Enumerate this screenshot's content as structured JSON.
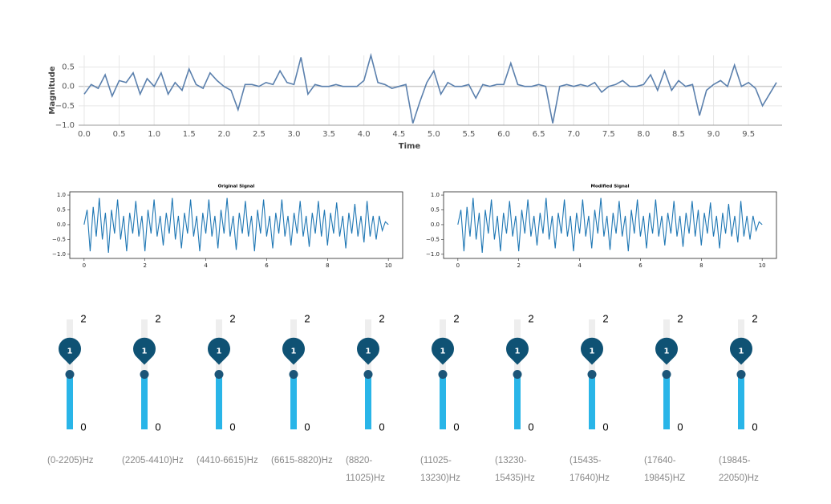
{
  "chart_data": [
    {
      "type": "line",
      "xlabel": "Time",
      "ylabel": "Magnitude",
      "grid": true,
      "x": [
        0,
        0.1,
        0.2,
        0.3,
        0.4,
        0.5,
        0.6,
        0.7,
        0.8,
        0.9,
        1,
        1.1,
        1.2,
        1.3,
        1.4,
        1.5,
        1.6,
        1.7,
        1.8,
        1.9,
        2,
        2.1,
        2.2,
        2.3,
        2.4,
        2.5,
        2.6,
        2.7,
        2.8,
        2.9,
        3,
        3.1,
        3.2,
        3.3,
        3.4,
        3.5,
        3.6,
        3.7,
        3.8,
        3.9,
        4,
        4.1,
        4.2,
        4.3,
        4.4,
        4.5,
        4.6,
        4.7,
        4.8,
        4.9,
        5,
        5.1,
        5.2,
        5.3,
        5.4,
        5.5,
        5.6,
        5.7,
        5.8,
        5.9,
        6,
        6.1,
        6.2,
        6.3,
        6.4,
        6.5,
        6.6,
        6.7,
        6.8,
        6.9,
        7,
        7.1,
        7.2,
        7.3,
        7.4,
        7.5,
        7.6,
        7.7,
        7.8,
        7.9,
        8,
        8.1,
        8.2,
        8.3,
        8.4,
        8.5,
        8.6,
        8.7,
        8.8,
        8.9,
        9,
        9.1,
        9.2,
        9.3,
        9.4,
        9.5,
        9.6,
        9.7,
        9.8,
        9.9
      ],
      "series": [
        {
          "color": "#5b80ad",
          "values": [
            -0.2,
            0.05,
            -0.05,
            0.3,
            -0.25,
            0.15,
            0.1,
            0.35,
            -0.2,
            0.2,
            0,
            0.35,
            -0.2,
            0.1,
            -0.1,
            0.45,
            0.05,
            -0.05,
            0.35,
            0.15,
            0,
            -0.1,
            -0.6,
            0.05,
            0.05,
            0,
            0.1,
            0.05,
            0.4,
            0.1,
            0.05,
            0.75,
            -0.2,
            0.05,
            0,
            0,
            0.05,
            0,
            0,
            0,
            0.15,
            0.8,
            0.1,
            0.05,
            -0.05,
            0,
            0.05,
            -0.95,
            -0.4,
            0.1,
            0.4,
            -0.2,
            0.1,
            0,
            0,
            0.05,
            -0.3,
            0.05,
            0,
            0.05,
            0.05,
            0.6,
            0.05,
            0,
            0,
            0.05,
            0,
            -0.95,
            0,
            0.05,
            0,
            0.05,
            0,
            0.1,
            -0.15,
            0,
            0.05,
            0.15,
            0,
            0,
            0.05,
            0.3,
            -0.1,
            0.4,
            -0.1,
            0.15,
            0,
            0.05,
            -0.75,
            -0.1,
            0.05,
            0.15,
            0,
            0.55,
            0,
            0.1,
            -0.05,
            -0.5,
            -0.2,
            0.1
          ]
        }
      ],
      "xlim": [
        -0.08,
        9.98
      ],
      "ylim": [
        -1.0,
        0.8
      ],
      "xticks": [
        {
          "value": 0,
          "label": "0.0"
        },
        0.5,
        {
          "value": 1,
          "label": "1.0"
        },
        1.5,
        {
          "value": 2,
          "label": "2.0"
        },
        2.5,
        {
          "value": 3,
          "label": "3.0"
        },
        3.5,
        {
          "value": 4,
          "label": "4.0"
        },
        4.5,
        {
          "value": 5,
          "label": "5.0"
        },
        5.5,
        {
          "value": 6,
          "label": "6.0"
        },
        6.5,
        {
          "value": 7,
          "label": "7.0"
        },
        7.5,
        {
          "value": 8,
          "label": "8.0"
        },
        8.5,
        {
          "value": 9,
          "label": "9.0"
        },
        9.5
      ],
      "yticks": [
        {
          "value": -1,
          "label": "−1.0"
        },
        {
          "value": -0.5,
          "label": "−0.5"
        },
        {
          "value": 0,
          "label": "0.0"
        },
        0.5
      ]
    },
    {
      "type": "line",
      "title": "Original Signal",
      "x": [
        0,
        0.1,
        0.2,
        0.3,
        0.4,
        0.5,
        0.6,
        0.7,
        0.8,
        0.9,
        1,
        1.1,
        1.2,
        1.3,
        1.4,
        1.5,
        1.6,
        1.7,
        1.8,
        1.9,
        2,
        2.1,
        2.2,
        2.3,
        2.4,
        2.5,
        2.6,
        2.7,
        2.8,
        2.9,
        3,
        3.1,
        3.2,
        3.3,
        3.4,
        3.5,
        3.6,
        3.7,
        3.8,
        3.9,
        4,
        4.1,
        4.2,
        4.3,
        4.4,
        4.5,
        4.6,
        4.7,
        4.8,
        4.9,
        5,
        5.1,
        5.2,
        5.3,
        5.4,
        5.5,
        5.6,
        5.7,
        5.8,
        5.9,
        6,
        6.1,
        6.2,
        6.3,
        6.4,
        6.5,
        6.6,
        6.7,
        6.8,
        6.9,
        7,
        7.1,
        7.2,
        7.3,
        7.4,
        7.5,
        7.6,
        7.7,
        7.8,
        7.9,
        8,
        8.1,
        8.2,
        8.3,
        8.4,
        8.5,
        8.6,
        8.7,
        8.8,
        8.9,
        9,
        9.1,
        9.2,
        9.3,
        9.4,
        9.5,
        9.6,
        9.7,
        9.8,
        9.9,
        10
      ],
      "series": [
        {
          "color": "#1f77b4",
          "values": [
            0,
            0.5,
            -0.9,
            0.6,
            -0.4,
            0.9,
            -0.5,
            0.4,
            -0.95,
            0.5,
            -0.3,
            0.85,
            -0.5,
            0.3,
            -0.9,
            0.4,
            -0.3,
            0.8,
            -0.4,
            0.3,
            -0.9,
            0.5,
            -0.3,
            0.85,
            -0.4,
            0.3,
            -0.7,
            0.4,
            -0.3,
            0.9,
            -0.5,
            0.3,
            -0.8,
            0.4,
            -0.3,
            0.85,
            -0.4,
            0.3,
            -0.9,
            0.4,
            -0.3,
            0.85,
            -0.4,
            0.3,
            -0.8,
            0.5,
            -0.3,
            0.9,
            -0.4,
            0.3,
            -0.85,
            0.4,
            -0.3,
            0.8,
            -0.4,
            0.3,
            -0.9,
            0.5,
            -0.3,
            0.85,
            -0.4,
            0.3,
            -0.8,
            0.4,
            -0.3,
            0.85,
            -0.4,
            0.3,
            -0.7,
            0.4,
            -0.3,
            0.8,
            -0.4,
            0.3,
            -0.75,
            0.4,
            -0.3,
            0.8,
            -0.4,
            0.5,
            -0.7,
            0.4,
            -0.3,
            0.75,
            -0.4,
            0.3,
            -0.8,
            0.4,
            -0.3,
            0.7,
            -0.4,
            0.3,
            -0.6,
            0.8,
            -0.4,
            0.3,
            -0.5,
            0.3,
            -0.2,
            0.1,
            0
          ]
        }
      ],
      "xlim": [
        -0.47,
        10.47
      ],
      "ylim": [
        -1.14,
        1.11
      ],
      "xticks": [
        0,
        2,
        4,
        6,
        8,
        10
      ],
      "yticks": [
        {
          "value": -1,
          "label": "−1.0"
        },
        {
          "value": -0.5,
          "label": "−0.5"
        },
        {
          "value": 0,
          "label": "0.0"
        },
        0.5,
        {
          "value": 1,
          "label": "1.0"
        }
      ]
    },
    {
      "type": "line",
      "title": "Modified Signal",
      "x": [
        0,
        0.1,
        0.2,
        0.3,
        0.4,
        0.5,
        0.6,
        0.7,
        0.8,
        0.9,
        1,
        1.1,
        1.2,
        1.3,
        1.4,
        1.5,
        1.6,
        1.7,
        1.8,
        1.9,
        2,
        2.1,
        2.2,
        2.3,
        2.4,
        2.5,
        2.6,
        2.7,
        2.8,
        2.9,
        3,
        3.1,
        3.2,
        3.3,
        3.4,
        3.5,
        3.6,
        3.7,
        3.8,
        3.9,
        4,
        4.1,
        4.2,
        4.3,
        4.4,
        4.5,
        4.6,
        4.7,
        4.8,
        4.9,
        5,
        5.1,
        5.2,
        5.3,
        5.4,
        5.5,
        5.6,
        5.7,
        5.8,
        5.9,
        6,
        6.1,
        6.2,
        6.3,
        6.4,
        6.5,
        6.6,
        6.7,
        6.8,
        6.9,
        7,
        7.1,
        7.2,
        7.3,
        7.4,
        7.5,
        7.6,
        7.7,
        7.8,
        7.9,
        8,
        8.1,
        8.2,
        8.3,
        8.4,
        8.5,
        8.6,
        8.7,
        8.8,
        8.9,
        9,
        9.1,
        9.2,
        9.3,
        9.4,
        9.5,
        9.6,
        9.7,
        9.8,
        9.9,
        10
      ],
      "series": [
        {
          "color": "#1f77b4",
          "values": [
            0,
            0.5,
            -0.9,
            0.6,
            -0.4,
            0.9,
            -0.5,
            0.4,
            -0.95,
            0.5,
            -0.3,
            0.85,
            -0.5,
            0.3,
            -0.9,
            0.4,
            -0.3,
            0.8,
            -0.4,
            0.3,
            -0.9,
            0.5,
            -0.3,
            0.85,
            -0.4,
            0.3,
            -0.7,
            0.4,
            -0.3,
            0.9,
            -0.5,
            0.3,
            -0.8,
            0.4,
            -0.3,
            0.85,
            -0.4,
            0.3,
            -0.9,
            0.4,
            -0.3,
            0.85,
            -0.4,
            0.3,
            -0.8,
            0.5,
            -0.3,
            0.9,
            -0.4,
            0.3,
            -0.85,
            0.4,
            -0.3,
            0.8,
            -0.4,
            0.3,
            -0.9,
            0.5,
            -0.3,
            0.85,
            -0.4,
            0.3,
            -0.8,
            0.4,
            -0.3,
            0.85,
            -0.4,
            0.3,
            -0.7,
            0.4,
            -0.3,
            0.8,
            -0.4,
            0.3,
            -0.75,
            0.4,
            -0.3,
            0.8,
            -0.4,
            0.5,
            -0.7,
            0.4,
            -0.3,
            0.75,
            -0.4,
            0.3,
            -0.8,
            0.4,
            -0.3,
            0.7,
            -0.4,
            0.3,
            -0.6,
            0.8,
            -0.4,
            0.3,
            -0.5,
            0.3,
            -0.2,
            0.1,
            0
          ]
        }
      ],
      "xlim": [
        -0.47,
        10.47
      ],
      "ylim": [
        -1.14,
        1.11
      ],
      "xticks": [
        0,
        2,
        4,
        6,
        8,
        10
      ],
      "yticks": [
        {
          "value": -1,
          "label": "−1.0"
        },
        {
          "value": -0.5,
          "label": "−0.5"
        },
        {
          "value": 0,
          "label": "0.0"
        },
        0.5,
        {
          "value": 1,
          "label": "1.0"
        }
      ]
    }
  ],
  "sliders": [
    {
      "label": "(0-2205)Hz",
      "min": 0,
      "max": 2,
      "value": 1
    },
    {
      "label": "(2205-4410)Hz",
      "min": 0,
      "max": 2,
      "value": 1
    },
    {
      "label": "(4410-6615)Hz",
      "min": 0,
      "max": 2,
      "value": 1
    },
    {
      "label": "(6615-8820)Hz",
      "min": 0,
      "max": 2,
      "value": 1
    },
    {
      "label": "(8820-11025)Hz",
      "min": 0,
      "max": 2,
      "value": 1
    },
    {
      "label": "(11025-13230)Hz",
      "min": 0,
      "max": 2,
      "value": 1
    },
    {
      "label": "(13230-15435)Hz",
      "min": 0,
      "max": 2,
      "value": 1
    },
    {
      "label": "(15435-17640)Hz",
      "min": 0,
      "max": 2,
      "value": 1
    },
    {
      "label": "(17640-19845)HZ",
      "min": 0,
      "max": 2,
      "value": 1
    },
    {
      "label": "(19845-22050)Hz",
      "min": 0,
      "max": 2,
      "value": 1
    }
  ]
}
